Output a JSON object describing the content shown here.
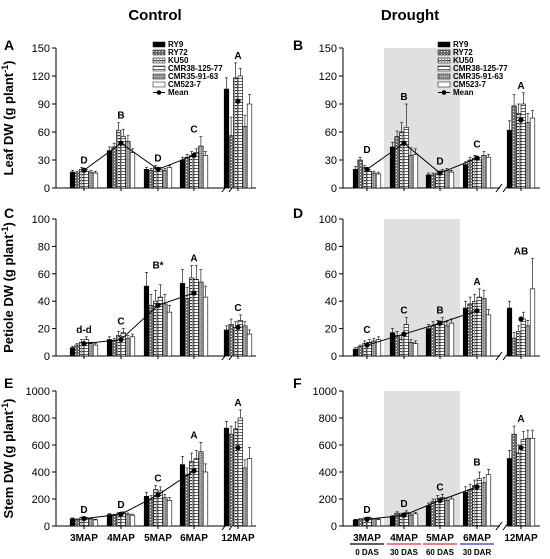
{
  "figure": {
    "columns": [
      "Control",
      "Drought"
    ],
    "x_categories": [
      "3MAP",
      "4MAP",
      "5MAP",
      "6MAP",
      "12MAP"
    ],
    "legend": [
      "RY9",
      "RY72",
      "KU50",
      "CMR38-125-77",
      "CMR35-91-63",
      "CM523-7",
      "Mean"
    ],
    "drought_periods": [
      {
        "label": "0 DAS",
        "color": "#000000"
      },
      {
        "label": "30 DAS",
        "color": "#d9303a"
      },
      {
        "label": "60 DAS",
        "color": "#d9303a"
      },
      {
        "label": "30 DAR",
        "color": "#2a3ab0"
      }
    ],
    "colors": {
      "shade": "#e0e0e0",
      "bar_edge": "#000000",
      "mean": "#000000"
    }
  },
  "chart_data": [
    {
      "panel": "A",
      "type": "bar",
      "condition": "Control",
      "ylabel": "Leaf DW (g plant-1)",
      "ylim": [
        0,
        150
      ],
      "yticks": [
        0,
        30,
        60,
        90,
        120,
        150
      ],
      "categories": [
        "3MAP",
        "4MAP",
        "5MAP",
        "6MAP",
        "12MAP"
      ],
      "series": [
        {
          "name": "RY9",
          "values": [
            17,
            40,
            20,
            30,
            106
          ]
        },
        {
          "name": "RY72",
          "values": [
            16,
            44,
            19,
            33,
            56
          ]
        },
        {
          "name": "KU50",
          "values": [
            20,
            62,
            22,
            35,
            118
          ]
        },
        {
          "name": "CMR38-125-77",
          "values": [
            18,
            55,
            20,
            38,
            120
          ]
        },
        {
          "name": "CMR35-91-63",
          "values": [
            17,
            50,
            19,
            45,
            66
          ]
        },
        {
          "name": "CM523-7",
          "values": [
            16,
            38,
            22,
            35,
            90
          ]
        }
      ],
      "errors": [
        [
          2,
          4,
          2,
          3,
          12
        ],
        [
          2,
          4,
          2,
          3,
          20
        ],
        [
          2,
          8,
          2,
          4,
          16
        ],
        [
          2,
          8,
          2,
          4,
          8
        ],
        [
          2,
          6,
          2,
          10,
          12
        ],
        [
          2,
          4,
          2,
          4,
          10
        ]
      ],
      "mean": [
        19,
        48,
        20,
        35,
        93
      ],
      "mean_labels": [
        "D",
        "B",
        "D",
        "C",
        "A"
      ]
    },
    {
      "panel": "B",
      "type": "bar",
      "condition": "Drought",
      "ylabel": "",
      "ylim": [
        0,
        150
      ],
      "yticks": [
        0,
        30,
        60,
        90,
        120,
        150
      ],
      "categories": [
        "3MAP",
        "4MAP",
        "5MAP",
        "6MAP",
        "12MAP"
      ],
      "series": [
        {
          "name": "RY9",
          "values": [
            20,
            44,
            14,
            25,
            62
          ]
        },
        {
          "name": "RY72",
          "values": [
            30,
            55,
            14,
            30,
            88
          ]
        },
        {
          "name": "KU50",
          "values": [
            22,
            60,
            16,
            32,
            80
          ]
        },
        {
          "name": "CMR38-125-77",
          "values": [
            18,
            65,
            18,
            30,
            90
          ]
        },
        {
          "name": "CMR35-91-63",
          "values": [
            16,
            35,
            19,
            35,
            70
          ]
        },
        {
          "name": "CM523-7",
          "values": [
            15,
            36,
            17,
            33,
            75
          ]
        }
      ],
      "errors": [
        [
          3,
          5,
          2,
          3,
          10
        ],
        [
          3,
          6,
          2,
          3,
          12
        ],
        [
          2,
          10,
          2,
          3,
          10
        ],
        [
          2,
          25,
          2,
          3,
          12
        ],
        [
          2,
          8,
          2,
          4,
          10
        ],
        [
          2,
          6,
          2,
          3,
          8
        ]
      ],
      "mean": [
        20,
        48,
        16,
        32,
        73
      ],
      "mean_labels": [
        "D",
        "B",
        "D",
        "C",
        "A"
      ]
    },
    {
      "panel": "C",
      "type": "bar",
      "condition": "Control",
      "ylabel": "Petiole DW (g plant-1)",
      "ylim": [
        0,
        100
      ],
      "yticks": [
        0,
        20,
        40,
        60,
        80,
        100
      ],
      "categories": [
        "3MAP",
        "4MAP",
        "5MAP",
        "6MAP",
        "12MAP"
      ],
      "series": [
        {
          "name": "RY9",
          "values": [
            6,
            12,
            51,
            53,
            19
          ]
        },
        {
          "name": "RY72",
          "values": [
            8,
            11,
            37,
            42,
            23
          ]
        },
        {
          "name": "KU50",
          "values": [
            10,
            15,
            40,
            57,
            21
          ]
        },
        {
          "name": "CMR38-125-77",
          "values": [
            12,
            17,
            43,
            56,
            26
          ]
        },
        {
          "name": "CMR35-91-63",
          "values": [
            9,
            13,
            38,
            54,
            22
          ]
        },
        {
          "name": "CM523-7",
          "values": [
            8,
            14,
            32,
            43,
            16
          ]
        }
      ],
      "errors": [
        [
          1,
          2,
          10,
          10,
          3
        ],
        [
          1,
          2,
          8,
          8,
          4
        ],
        [
          2,
          3,
          8,
          9,
          4
        ],
        [
          2,
          3,
          9,
          10,
          4
        ],
        [
          1,
          2,
          7,
          9,
          3
        ],
        [
          1,
          2,
          5,
          8,
          3
        ]
      ],
      "mean": [
        9,
        12,
        37,
        46,
        21
      ],
      "mean_labels": [
        "d-d",
        "C",
        "B*",
        "A",
        "C"
      ]
    },
    {
      "panel": "D",
      "type": "bar",
      "condition": "Drought",
      "ylabel": "",
      "ylim": [
        0,
        100
      ],
      "yticks": [
        0,
        20,
        40,
        60,
        80,
        100
      ],
      "categories": [
        "3MAP",
        "4MAP",
        "5MAP",
        "6MAP",
        "12MAP"
      ],
      "series": [
        {
          "name": "RY9",
          "values": [
            5,
            17,
            20,
            35,
            35
          ]
        },
        {
          "name": "RY72",
          "values": [
            7,
            15,
            22,
            38,
            13
          ]
        },
        {
          "name": "KU50",
          "values": [
            9,
            12,
            23,
            40,
            18
          ]
        },
        {
          "name": "CMR38-125-77",
          "values": [
            10,
            23,
            25,
            43,
            27
          ]
        },
        {
          "name": "CMR35-91-63",
          "values": [
            11,
            10,
            22,
            42,
            22
          ]
        },
        {
          "name": "CM523-7",
          "values": [
            12,
            9,
            24,
            30,
            49
          ]
        }
      ],
      "errors": [
        [
          1,
          3,
          3,
          5,
          5
        ],
        [
          1,
          3,
          3,
          5,
          4
        ],
        [
          2,
          3,
          3,
          5,
          4
        ],
        [
          2,
          5,
          3,
          6,
          5
        ],
        [
          2,
          2,
          3,
          6,
          4
        ],
        [
          2,
          2,
          3,
          4,
          22
        ]
      ],
      "mean": [
        8,
        16,
        24,
        33,
        27
      ],
      "mean_labels": [
        "C",
        "C",
        "B",
        "A",
        "AB"
      ]
    },
    {
      "panel": "E",
      "type": "bar",
      "condition": "Control",
      "ylabel": "Stem DW (g plant-1)",
      "ylim": [
        0,
        1000
      ],
      "yticks": [
        0,
        200,
        400,
        600,
        800,
        1000
      ],
      "categories": [
        "3MAP",
        "4MAP",
        "5MAP",
        "6MAP",
        "12MAP"
      ],
      "series": [
        {
          "name": "RY9",
          "values": [
            55,
            85,
            220,
            455,
            725
          ]
        },
        {
          "name": "RY72",
          "values": [
            48,
            78,
            200,
            380,
            680
          ]
        },
        {
          "name": "KU50",
          "values": [
            60,
            92,
            270,
            480,
            720
          ]
        },
        {
          "name": "CMR38-125-77",
          "values": [
            58,
            95,
            260,
            500,
            800
          ]
        },
        {
          "name": "CMR35-91-63",
          "values": [
            52,
            88,
            210,
            550,
            430
          ]
        },
        {
          "name": "CM523-7",
          "values": [
            45,
            80,
            190,
            400,
            500
          ]
        }
      ],
      "errors": [
        [
          5,
          8,
          30,
          60,
          50
        ],
        [
          5,
          8,
          25,
          50,
          60
        ],
        [
          6,
          8,
          30,
          60,
          50
        ],
        [
          6,
          10,
          30,
          60,
          60
        ],
        [
          5,
          8,
          25,
          70,
          60
        ],
        [
          5,
          8,
          20,
          60,
          80
        ]
      ],
      "mean": [
        55,
        87,
        230,
        410,
        580
      ],
      "mean_labels": [
        "D",
        "D",
        "C",
        "A",
        "A"
      ]
    },
    {
      "panel": "F",
      "type": "bar",
      "condition": "Drought",
      "ylabel": "",
      "ylim": [
        0,
        1000
      ],
      "yticks": [
        0,
        200,
        400,
        600,
        800,
        1000
      ],
      "categories": [
        "3MAP",
        "4MAP",
        "5MAP",
        "6MAP",
        "12MAP"
      ],
      "series": [
        {
          "name": "RY9",
          "values": [
            45,
            70,
            150,
            250,
            500
          ]
        },
        {
          "name": "RY72",
          "values": [
            50,
            95,
            180,
            270,
            680
          ]
        },
        {
          "name": "KU50",
          "values": [
            55,
            85,
            200,
            300,
            540
          ]
        },
        {
          "name": "CMR38-125-77",
          "values": [
            60,
            100,
            210,
            350,
            640
          ]
        },
        {
          "name": "CMR35-91-63",
          "values": [
            52,
            80,
            190,
            320,
            650
          ]
        },
        {
          "name": "CM523-7",
          "values": [
            48,
            90,
            200,
            380,
            650
          ]
        }
      ],
      "errors": [
        [
          5,
          8,
          20,
          40,
          60
        ],
        [
          5,
          10,
          20,
          40,
          60
        ],
        [
          6,
          10,
          25,
          40,
          60
        ],
        [
          6,
          12,
          25,
          50,
          60
        ],
        [
          5,
          10,
          20,
          40,
          60
        ],
        [
          5,
          10,
          20,
          40,
          60
        ]
      ],
      "mean": [
        50,
        80,
        190,
        290,
        580
      ],
      "mean_labels": [
        "D",
        "D",
        "C",
        "B",
        "A"
      ]
    }
  ]
}
